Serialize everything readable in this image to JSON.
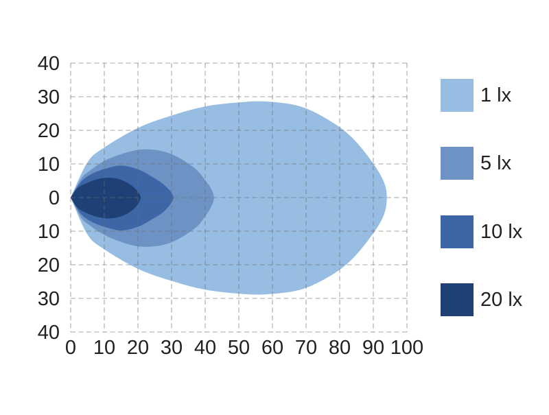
{
  "chart_data": {
    "type": "area",
    "title": "",
    "xlabel": "",
    "ylabel": "",
    "xlim": [
      0,
      100
    ],
    "ylim": [
      -40,
      40
    ],
    "grid": true,
    "grid_style": "dashed",
    "x_tick_labels": [
      "0",
      "10",
      "20",
      "30",
      "40",
      "50",
      "60",
      "70",
      "80",
      "90",
      "100"
    ],
    "y_tick_labels": [
      "40",
      "30",
      "20",
      "10",
      "0",
      "10",
      "20",
      "30",
      "40"
    ],
    "y_tick_values": [
      40,
      30,
      20,
      10,
      0,
      -10,
      -20,
      -30,
      -40
    ],
    "legend_position": "right",
    "series": [
      {
        "name": "1 lx",
        "color": "#97BDE3",
        "points": [
          [
            0,
            0
          ],
          [
            5,
            10.5
          ],
          [
            10,
            14.9
          ],
          [
            20,
            20.7
          ],
          [
            30,
            24.4
          ],
          [
            40,
            27.1
          ],
          [
            50,
            28.3
          ],
          [
            58,
            28.6
          ],
          [
            68,
            27.2
          ],
          [
            76,
            23.5
          ],
          [
            83,
            18.5
          ],
          [
            89,
            11.5
          ],
          [
            93,
            5
          ],
          [
            94,
            0
          ],
          [
            93,
            -5.5
          ],
          [
            89,
            -12
          ],
          [
            83,
            -19
          ],
          [
            76,
            -24
          ],
          [
            68,
            -27.5
          ],
          [
            58,
            -28.8
          ],
          [
            50,
            -28.6
          ],
          [
            40,
            -27.4
          ],
          [
            30,
            -24.8
          ],
          [
            20,
            -21.2
          ],
          [
            10,
            -15.4
          ],
          [
            5,
            -11
          ],
          [
            0,
            0
          ]
        ]
      },
      {
        "name": "5 lx",
        "color": "#6D93C4",
        "points": [
          [
            0,
            0
          ],
          [
            3,
            5.5
          ],
          [
            5,
            7.5
          ],
          [
            10,
            10.9
          ],
          [
            15,
            12.9
          ],
          [
            20,
            14.2
          ],
          [
            25,
            14.2
          ],
          [
            30,
            12.9
          ],
          [
            35,
            10.1
          ],
          [
            39,
            6.5
          ],
          [
            42.6,
            0
          ],
          [
            39,
            -7
          ],
          [
            35,
            -10.5
          ],
          [
            30,
            -13.3
          ],
          [
            25,
            -14.5
          ],
          [
            20,
            -14.5
          ],
          [
            15,
            -13.2
          ],
          [
            10,
            -11.1
          ],
          [
            5,
            -7.8
          ],
          [
            3,
            -5.8
          ],
          [
            0,
            0
          ]
        ]
      },
      {
        "name": "10 lx",
        "color": "#3C66A6",
        "points": [
          [
            0,
            0
          ],
          [
            3,
            4.6
          ],
          [
            6,
            6.9
          ],
          [
            10,
            8.5
          ],
          [
            15,
            9.5
          ],
          [
            20,
            8.4
          ],
          [
            24,
            6.3
          ],
          [
            28,
            3.6
          ],
          [
            30.5,
            0
          ],
          [
            28,
            -3.9
          ],
          [
            24,
            -6.6
          ],
          [
            20,
            -8.7
          ],
          [
            15,
            -9.8
          ],
          [
            10,
            -8.7
          ],
          [
            6,
            -7.1
          ],
          [
            3,
            -4.8
          ],
          [
            0,
            0
          ]
        ]
      },
      {
        "name": "20 lx",
        "color": "#1E4075",
        "points": [
          [
            0,
            0
          ],
          [
            2,
            2.8
          ],
          [
            5,
            4.4
          ],
          [
            8,
            5.5
          ],
          [
            11,
            5.9
          ],
          [
            14,
            5.6
          ],
          [
            17,
            4.3
          ],
          [
            19.5,
            2.3
          ],
          [
            20.8,
            0
          ],
          [
            19.5,
            -2.6
          ],
          [
            17,
            -4.7
          ],
          [
            14,
            -5.9
          ],
          [
            11,
            -6.2
          ],
          [
            8,
            -5.8
          ],
          [
            5,
            -4.7
          ],
          [
            2,
            -3
          ],
          [
            0,
            0
          ]
        ]
      }
    ]
  },
  "legend": {
    "items": [
      {
        "label": "1 lx",
        "color": "#97BDE3"
      },
      {
        "label": "5 lx",
        "color": "#6D93C4"
      },
      {
        "label": "10 lx",
        "color": "#3C66A6"
      },
      {
        "label": "20 lx",
        "color": "#1E4075"
      }
    ]
  },
  "colors": {
    "background": "#ffffff",
    "grid": "rgba(110,110,110,0.42)",
    "tick_text": "#231f20"
  }
}
